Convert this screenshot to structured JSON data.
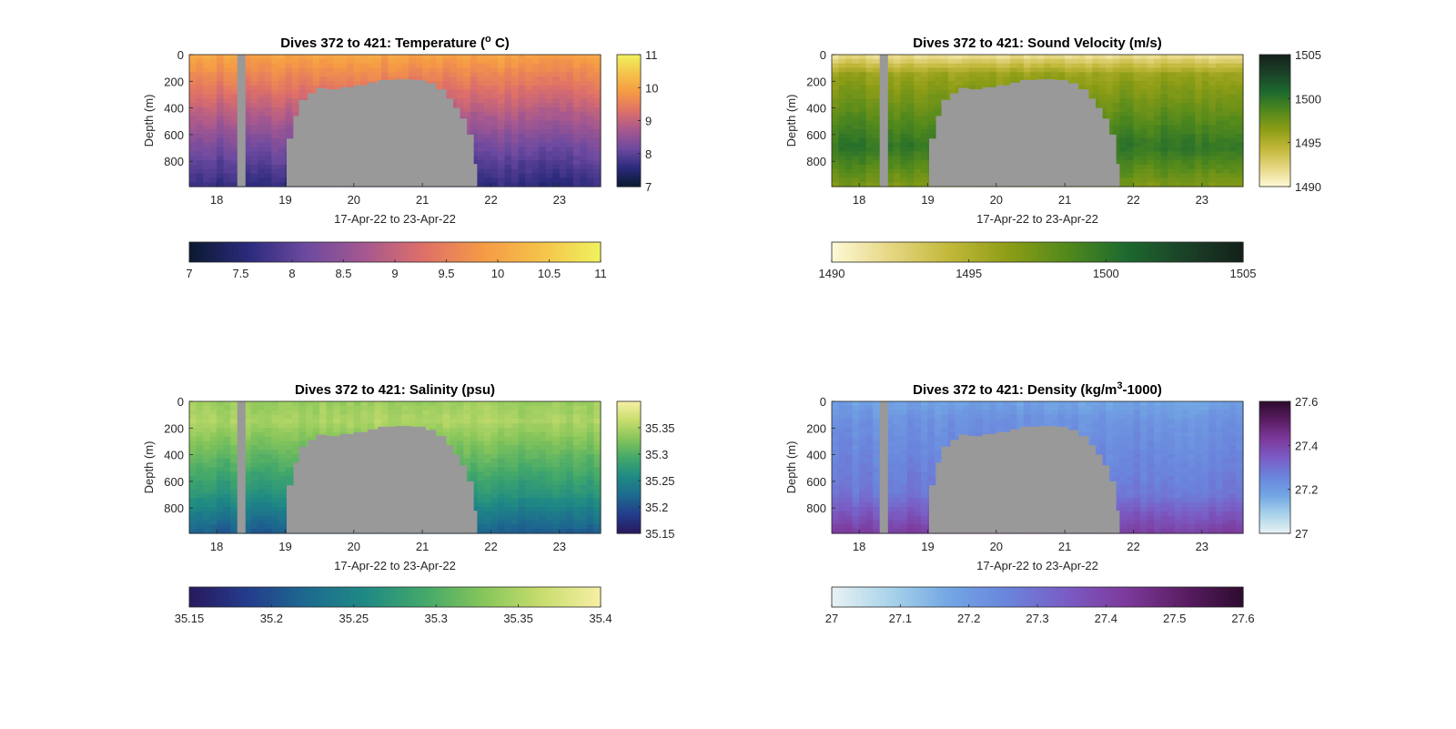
{
  "figure": {
    "background": "#ffffff",
    "ocean_gap_color": "#999999"
  },
  "chart_data": [
    {
      "type": "heatmap",
      "variable": "temperature",
      "title": "Dives 372 to 421: Temperature (",
      "title_sup": "o",
      "title_suffix": " C)",
      "xlabel": "17-Apr-22 to 23-Apr-22",
      "ylabel": "Depth (m)",
      "x_ticks": [
        "18",
        "19",
        "20",
        "21",
        "22",
        "23"
      ],
      "x_tick_values": [
        18,
        19,
        20,
        21,
        22,
        23
      ],
      "xlim": [
        17.6,
        23.6
      ],
      "y_ticks": [
        "0",
        "200",
        "400",
        "600",
        "800"
      ],
      "y_tick_values": [
        0,
        200,
        400,
        600,
        800
      ],
      "ylim": [
        0,
        990
      ],
      "colorbar_right": {
        "ticks": [
          "7",
          "8",
          "9",
          "10",
          "11"
        ],
        "tick_values": [
          7,
          8,
          9,
          10,
          11
        ],
        "range": [
          7,
          11
        ]
      },
      "colorbar_bottom": {
        "ticks": [
          "7",
          "7.5",
          "8",
          "8.5",
          "9",
          "9.5",
          "10",
          "10.5",
          "11"
        ],
        "tick_values": [
          7,
          7.5,
          8,
          8.5,
          9,
          9.5,
          10,
          10.5,
          11
        ],
        "range": [
          7,
          11
        ]
      },
      "colormap": [
        "#0a1a30",
        "#2b2a7c",
        "#6d4aa0",
        "#a6588f",
        "#df7068",
        "#f59a45",
        "#f5c34a",
        "#f0f25f"
      ],
      "profile": {
        "surface": 10.0,
        "mid": 9.6,
        "deep": 8.2,
        "bottom": 7.6
      }
    },
    {
      "type": "heatmap",
      "variable": "sound_velocity",
      "title": "Dives 372 to 421: Sound Velocity (m/s)",
      "xlabel": "17-Apr-22 to 23-Apr-22",
      "ylabel": "Depth (m)",
      "x_ticks": [
        "18",
        "19",
        "20",
        "21",
        "22",
        "23"
      ],
      "x_tick_values": [
        18,
        19,
        20,
        21,
        22,
        23
      ],
      "xlim": [
        17.6,
        23.6
      ],
      "y_ticks": [
        "0",
        "200",
        "400",
        "600",
        "800"
      ],
      "y_tick_values": [
        0,
        200,
        400,
        600,
        800
      ],
      "ylim": [
        0,
        990
      ],
      "colorbar_right": {
        "ticks": [
          "1490",
          "1495",
          "1500",
          "1505"
        ],
        "tick_values": [
          1490,
          1495,
          1500,
          1505
        ],
        "range": [
          1490,
          1505
        ]
      },
      "colorbar_bottom": {
        "ticks": [
          "1490",
          "1495",
          "1500",
          "1505"
        ],
        "tick_values": [
          1490,
          1495,
          1500,
          1505
        ],
        "range": [
          1490,
          1505
        ]
      },
      "colormap": [
        "#fdf9d6",
        "#e6d783",
        "#c2b83a",
        "#8e9d16",
        "#52891c",
        "#1d6a2f",
        "#1b4228",
        "#14201a"
      ],
      "profile": {
        "surface": 1491.5,
        "mid": 1496.0,
        "deep": 1500.0,
        "bottom": 1497.0
      }
    },
    {
      "type": "heatmap",
      "variable": "salinity",
      "title": "Dives 372 to 421: Salinity (psu)",
      "xlabel": "17-Apr-22 to 23-Apr-22",
      "ylabel": "Depth (m)",
      "x_ticks": [
        "18",
        "19",
        "20",
        "21",
        "22",
        "23"
      ],
      "x_tick_values": [
        18,
        19,
        20,
        21,
        22,
        23
      ],
      "xlim": [
        17.6,
        23.6
      ],
      "y_ticks": [
        "0",
        "200",
        "400",
        "600",
        "800"
      ],
      "y_tick_values": [
        0,
        200,
        400,
        600,
        800
      ],
      "ylim": [
        0,
        990
      ],
      "colorbar_right": {
        "ticks": [
          "35.15",
          "35.2",
          "35.25",
          "35.3",
          "35.35"
        ],
        "tick_values": [
          35.15,
          35.2,
          35.25,
          35.3,
          35.35
        ],
        "range": [
          35.15,
          35.4
        ]
      },
      "colorbar_bottom": {
        "ticks": [
          "35.15",
          "35.2",
          "35.25",
          "35.3",
          "35.35",
          "35.4"
        ],
        "tick_values": [
          35.15,
          35.2,
          35.25,
          35.3,
          35.35,
          35.4
        ],
        "range": [
          35.15,
          35.4
        ]
      },
      "colormap": [
        "#28195e",
        "#243c8c",
        "#1d6a8f",
        "#1f8a84",
        "#43a86a",
        "#86c55a",
        "#c8dd6d",
        "#f7efa6"
      ],
      "profile": {
        "surface": 35.34,
        "mid": 35.35,
        "deep": 35.27,
        "bottom": 35.21
      }
    },
    {
      "type": "heatmap",
      "variable": "density",
      "title": "Dives 372 to 421: Density (kg/m",
      "title_sup": "3",
      "title_suffix": "-1000)",
      "xlabel": "17-Apr-22 to 23-Apr-22",
      "ylabel": "Depth (m)",
      "x_ticks": [
        "18",
        "19",
        "20",
        "21",
        "22",
        "23"
      ],
      "x_tick_values": [
        18,
        19,
        20,
        21,
        22,
        23
      ],
      "xlim": [
        17.6,
        23.6
      ],
      "y_ticks": [
        "0",
        "200",
        "400",
        "600",
        "800"
      ],
      "y_tick_values": [
        0,
        200,
        400,
        600,
        800
      ],
      "ylim": [
        0,
        990
      ],
      "colorbar_right": {
        "ticks": [
          "27",
          "27.2",
          "27.4",
          "27.6"
        ],
        "tick_values": [
          27,
          27.2,
          27.4,
          27.6
        ],
        "range": [
          27,
          27.6
        ]
      },
      "colorbar_bottom": {
        "ticks": [
          "27",
          "27.1",
          "27.2",
          "27.3",
          "27.4",
          "27.5",
          "27.6"
        ],
        "tick_values": [
          27,
          27.1,
          27.2,
          27.3,
          27.4,
          27.5,
          27.6
        ],
        "range": [
          27,
          27.6
        ]
      },
      "colormap": [
        "#e9f2f4",
        "#a9d3ea",
        "#72a6e4",
        "#6a84dc",
        "#7a5cc4",
        "#7d3a9c",
        "#5a1d63",
        "#2d0b2e"
      ],
      "profile": {
        "surface": 27.18,
        "mid": 27.22,
        "deep": 27.28,
        "bottom": 27.42
      }
    }
  ],
  "gaps": {
    "dive_gap_x": [
      18.3,
      18.42
    ],
    "surface_gap_boundary": [
      [
        19.0,
        990
      ],
      [
        19.02,
        630
      ],
      [
        19.12,
        460
      ],
      [
        19.2,
        340
      ],
      [
        19.33,
        290
      ],
      [
        19.45,
        250
      ],
      [
        19.6,
        260
      ],
      [
        19.8,
        245
      ],
      [
        20.0,
        230
      ],
      [
        20.2,
        210
      ],
      [
        20.35,
        190
      ],
      [
        20.6,
        185
      ],
      [
        20.85,
        190
      ],
      [
        21.05,
        215
      ],
      [
        21.2,
        260
      ],
      [
        21.35,
        330
      ],
      [
        21.45,
        400
      ],
      [
        21.55,
        480
      ],
      [
        21.65,
        600
      ],
      [
        21.75,
        820
      ],
      [
        21.8,
        990
      ]
    ]
  }
}
